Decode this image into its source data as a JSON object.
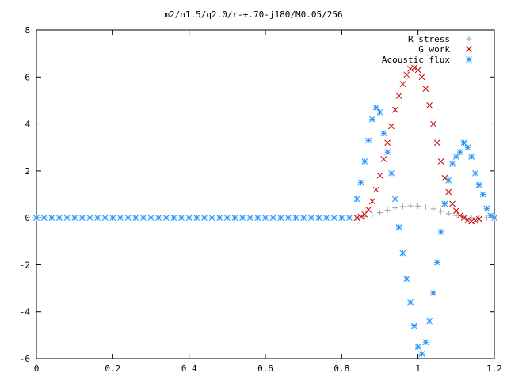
{
  "chart_data": {
    "type": "scatter",
    "title": "m2/n1.5/q2.0/r-+.70-j180/M0.05/256",
    "xlabel": "",
    "ylabel": "",
    "xlim": [
      0,
      1.2
    ],
    "ylim": [
      -6,
      8
    ],
    "xticks": [
      "0",
      "0.2",
      "0.4",
      "0.6",
      "0.8",
      "1",
      "1.2"
    ],
    "yticks": [
      "-6",
      "-4",
      "-2",
      "0",
      "2",
      "4",
      "6",
      "8"
    ],
    "xtick_values": [
      0,
      0.2,
      0.4,
      0.6,
      0.8,
      1.0,
      1.2
    ],
    "ytick_values": [
      -6,
      -4,
      -2,
      0,
      2,
      4,
      6,
      8
    ],
    "grid": false,
    "legend_position": "top-right",
    "series": [
      {
        "name": "R stress",
        "marker": "plus",
        "color": "#a0a0a0",
        "x": [
          0.84,
          0.86,
          0.88,
          0.9,
          0.92,
          0.94,
          0.96,
          0.98,
          1.0,
          1.02,
          1.04,
          1.06,
          1.08,
          1.1,
          1.12,
          1.14,
          1.16,
          1.18
        ],
        "y": [
          0.0,
          0.05,
          0.12,
          0.22,
          0.33,
          0.42,
          0.48,
          0.51,
          0.5,
          0.46,
          0.38,
          0.28,
          0.18,
          0.1,
          0.04,
          0.01,
          0.0,
          0.0
        ]
      },
      {
        "name": "G work",
        "marker": "cross",
        "color": "#cc0000",
        "x": [
          0.84,
          0.85,
          0.86,
          0.87,
          0.88,
          0.89,
          0.9,
          0.91,
          0.92,
          0.93,
          0.94,
          0.95,
          0.96,
          0.97,
          0.98,
          0.99,
          1.0,
          1.01,
          1.02,
          1.03,
          1.04,
          1.05,
          1.06,
          1.07,
          1.08,
          1.09,
          1.1,
          1.11,
          1.12,
          1.13,
          1.14,
          1.15,
          1.16
        ],
        "y": [
          0.0,
          0.05,
          0.15,
          0.35,
          0.7,
          1.2,
          1.8,
          2.5,
          3.2,
          3.9,
          4.6,
          5.2,
          5.7,
          6.1,
          6.35,
          6.4,
          6.3,
          6.0,
          5.5,
          4.8,
          4.0,
          3.2,
          2.4,
          1.7,
          1.1,
          0.6,
          0.3,
          0.1,
          0.0,
          -0.1,
          -0.15,
          -0.12,
          -0.05
        ]
      },
      {
        "name": "Acoustic flux",
        "marker": "star",
        "color": "#1e90ff",
        "x": [
          0.0,
          0.02,
          0.04,
          0.06,
          0.08,
          0.1,
          0.12,
          0.14,
          0.16,
          0.18,
          0.2,
          0.22,
          0.24,
          0.26,
          0.28,
          0.3,
          0.32,
          0.34,
          0.36,
          0.38,
          0.4,
          0.42,
          0.44,
          0.46,
          0.48,
          0.5,
          0.52,
          0.54,
          0.56,
          0.58,
          0.6,
          0.62,
          0.64,
          0.66,
          0.68,
          0.7,
          0.72,
          0.74,
          0.76,
          0.78,
          0.8,
          0.82,
          0.84,
          0.85,
          0.86,
          0.87,
          0.88,
          0.89,
          0.9,
          0.91,
          0.92,
          0.93,
          0.94,
          0.95,
          0.96,
          0.97,
          0.98,
          0.99,
          1.0,
          1.01,
          1.02,
          1.03,
          1.04,
          1.05,
          1.06,
          1.07,
          1.08,
          1.09,
          1.1,
          1.11,
          1.12,
          1.13,
          1.14,
          1.15,
          1.16,
          1.17,
          1.18,
          1.19,
          1.2
        ],
        "y": [
          0,
          0,
          0,
          0,
          0,
          0,
          0,
          0,
          0,
          0,
          0,
          0,
          0,
          0,
          0,
          0,
          0,
          0,
          0,
          0,
          0,
          0,
          0,
          0,
          0,
          0,
          0,
          0,
          0,
          0,
          0,
          0,
          0,
          0,
          0,
          0,
          0,
          0,
          0,
          0,
          0,
          0,
          0.8,
          1.5,
          2.4,
          3.3,
          4.2,
          4.7,
          4.5,
          3.6,
          2.8,
          1.9,
          0.8,
          -0.4,
          -1.5,
          -2.6,
          -3.6,
          -4.6,
          -5.5,
          -5.8,
          -5.3,
          -4.4,
          -3.2,
          -1.9,
          -0.6,
          0.6,
          1.6,
          2.3,
          2.6,
          2.8,
          3.2,
          3.0,
          2.6,
          1.9,
          1.4,
          1.0,
          0.4,
          0.1,
          0.0
        ]
      }
    ]
  }
}
